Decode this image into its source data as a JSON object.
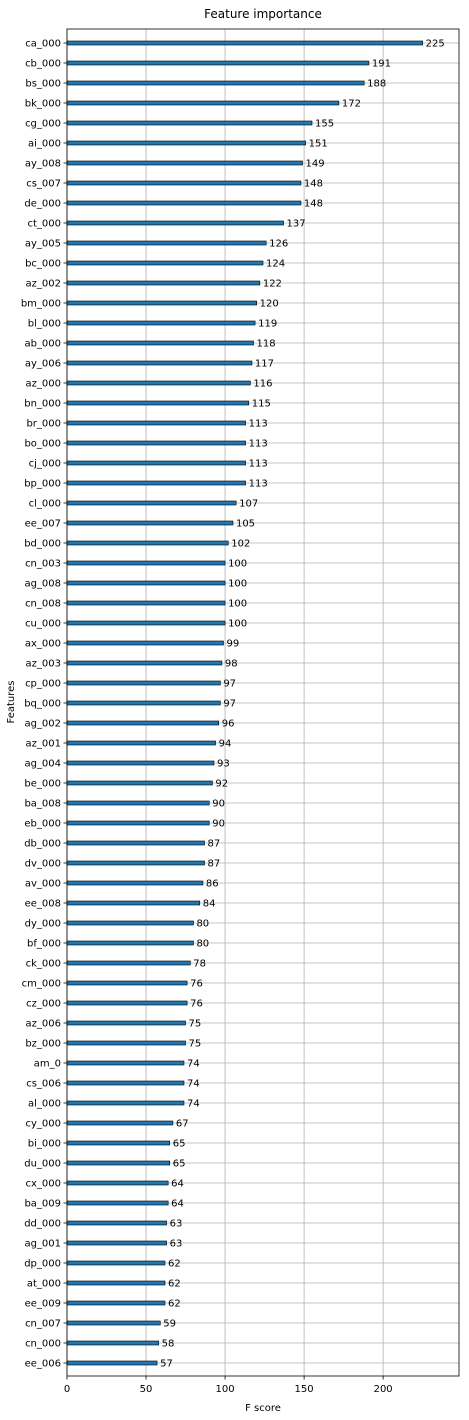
{
  "chart_data": {
    "type": "bar",
    "orientation": "horizontal",
    "title": "Feature importance",
    "xlabel": "F score",
    "ylabel": "Features",
    "xlim": [
      0,
      248
    ],
    "xticks": [
      0,
      50,
      100,
      150,
      200
    ],
    "grid": true,
    "bar_color": "#1f77b4",
    "categories": [
      "ca_000",
      "cb_000",
      "bs_000",
      "bk_000",
      "cg_000",
      "ai_000",
      "ay_008",
      "cs_007",
      "de_000",
      "ct_000",
      "ay_005",
      "bc_000",
      "az_002",
      "bm_000",
      "bl_000",
      "ab_000",
      "ay_006",
      "az_000",
      "bn_000",
      "br_000",
      "bo_000",
      "cj_000",
      "bp_000",
      "cl_000",
      "ee_007",
      "bd_000",
      "cn_003",
      "ag_008",
      "cn_008",
      "cu_000",
      "ax_000",
      "az_003",
      "cp_000",
      "bq_000",
      "ag_002",
      "az_001",
      "ag_004",
      "be_000",
      "ba_008",
      "eb_000",
      "db_000",
      "dv_000",
      "av_000",
      "ee_008",
      "dy_000",
      "bf_000",
      "ck_000",
      "cm_000",
      "cz_000",
      "az_006",
      "bz_000",
      "am_0",
      "cs_006",
      "al_000",
      "cy_000",
      "bi_000",
      "du_000",
      "cx_000",
      "ba_009",
      "dd_000",
      "ag_001",
      "dp_000",
      "at_000",
      "ee_009",
      "cn_007",
      "cn_000",
      "ee_006"
    ],
    "values": [
      225,
      191,
      188,
      172,
      155,
      151,
      149,
      148,
      148,
      137,
      126,
      124,
      122,
      120,
      119,
      118,
      117,
      116,
      115,
      113,
      113,
      113,
      113,
      107,
      105,
      102,
      100,
      100,
      100,
      100,
      99,
      98,
      97,
      97,
      96,
      94,
      93,
      92,
      90,
      90,
      87,
      87,
      86,
      84,
      80,
      80,
      78,
      76,
      76,
      75,
      75,
      74,
      74,
      74,
      67,
      65,
      65,
      64,
      64,
      63,
      63,
      62,
      62,
      62,
      59,
      58,
      57
    ]
  }
}
